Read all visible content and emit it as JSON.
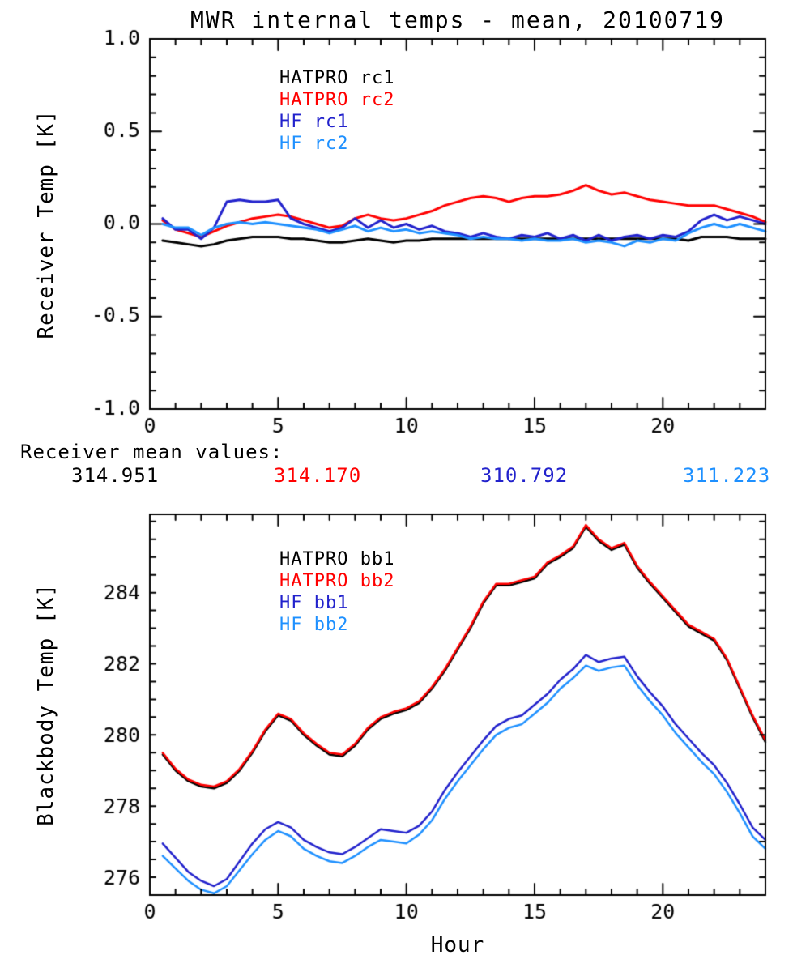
{
  "title": "MWR internal temps - mean, 20100719",
  "receiver_means": {
    "label": "Receiver mean values:",
    "values": [
      {
        "text": "314.951",
        "color": "#000000"
      },
      {
        "text": "314.170",
        "color": "#ff0000"
      },
      {
        "text": "310.792",
        "color": "#2222cc"
      },
      {
        "text": "311.223",
        "color": "#1e90ff"
      }
    ]
  },
  "chart_data": [
    {
      "type": "line",
      "name": "receiver-temp-plot",
      "ylabel": "Receiver Temp [K]",
      "xlabel": "",
      "xlim": [
        0,
        24
      ],
      "ylim": [
        -1.0,
        1.0
      ],
      "xticks": [
        0,
        5,
        10,
        15,
        20
      ],
      "xtick_labels": [
        "0",
        "5",
        "10",
        "15",
        "20"
      ],
      "yticks": [
        -1.0,
        -0.5,
        0.0,
        0.5,
        1.0
      ],
      "ytick_labels": [
        "-1.0",
        "-0.5",
        "0.0",
        "0.5",
        "1.0"
      ],
      "xminor": 1,
      "yminor": 0.1,
      "grid": false,
      "legend_position": "upper-left-inside",
      "x_start": 0.5,
      "x_step": 0.5,
      "series": [
        {
          "name": "HATPRO rc1",
          "color": "#000000",
          "values": [
            -0.09,
            -0.1,
            -0.11,
            -0.12,
            -0.11,
            -0.09,
            -0.08,
            -0.07,
            -0.07,
            -0.07,
            -0.08,
            -0.08,
            -0.09,
            -0.1,
            -0.1,
            -0.09,
            -0.08,
            -0.09,
            -0.1,
            -0.09,
            -0.09,
            -0.08,
            -0.08,
            -0.08,
            -0.08,
            -0.08,
            -0.08,
            -0.08,
            -0.08,
            -0.08,
            -0.08,
            -0.08,
            -0.08,
            -0.08,
            -0.08,
            -0.08,
            -0.08,
            -0.08,
            -0.08,
            -0.08,
            -0.08,
            -0.09,
            -0.07,
            -0.07,
            -0.07,
            -0.08,
            -0.08,
            -0.08
          ]
        },
        {
          "name": "HATPRO rc2",
          "color": "#ff0000",
          "values": [
            0.02,
            -0.03,
            -0.05,
            -0.07,
            -0.04,
            -0.01,
            0.01,
            0.03,
            0.04,
            0.05,
            0.04,
            0.02,
            0.0,
            -0.02,
            -0.01,
            0.03,
            0.05,
            0.03,
            0.02,
            0.03,
            0.05,
            0.07,
            0.1,
            0.12,
            0.14,
            0.15,
            0.14,
            0.12,
            0.14,
            0.15,
            0.15,
            0.16,
            0.18,
            0.21,
            0.18,
            0.16,
            0.17,
            0.15,
            0.13,
            0.12,
            0.11,
            0.1,
            0.1,
            0.1,
            0.08,
            0.06,
            0.04,
            0.01
          ]
        },
        {
          "name": "HF rc1",
          "color": "#2222cc",
          "values": [
            0.03,
            -0.03,
            -0.03,
            -0.08,
            -0.02,
            0.12,
            0.13,
            0.12,
            0.12,
            0.13,
            0.03,
            0.0,
            -0.02,
            -0.04,
            -0.02,
            0.03,
            -0.02,
            0.02,
            -0.02,
            0.0,
            -0.03,
            -0.01,
            -0.04,
            -0.05,
            -0.07,
            -0.05,
            -0.07,
            -0.08,
            -0.06,
            -0.07,
            -0.05,
            -0.08,
            -0.06,
            -0.09,
            -0.06,
            -0.09,
            -0.07,
            -0.06,
            -0.08,
            -0.06,
            -0.07,
            -0.04,
            0.02,
            0.05,
            0.02,
            0.04,
            0.02,
            0.0
          ]
        },
        {
          "name": "HF rc2",
          "color": "#1e90ff",
          "values": [
            0.0,
            -0.02,
            -0.02,
            -0.06,
            -0.02,
            0.0,
            0.01,
            0.0,
            0.01,
            0.0,
            -0.01,
            -0.02,
            -0.03,
            -0.05,
            -0.03,
            -0.01,
            -0.04,
            -0.02,
            -0.04,
            -0.03,
            -0.05,
            -0.04,
            -0.05,
            -0.06,
            -0.08,
            -0.07,
            -0.08,
            -0.08,
            -0.09,
            -0.08,
            -0.09,
            -0.09,
            -0.08,
            -0.1,
            -0.09,
            -0.1,
            -0.12,
            -0.09,
            -0.1,
            -0.08,
            -0.09,
            -0.05,
            -0.02,
            0.0,
            -0.02,
            0.0,
            -0.02,
            -0.04
          ]
        }
      ]
    },
    {
      "type": "line",
      "name": "blackbody-temp-plot",
      "ylabel": "Blackbody Temp [K]",
      "xlabel": "Hour",
      "xlim": [
        0,
        24
      ],
      "ylim": [
        275.55,
        286.25
      ],
      "xticks": [
        0,
        5,
        10,
        15,
        20
      ],
      "xtick_labels": [
        "0",
        "5",
        "10",
        "15",
        "20"
      ],
      "yticks": [
        276,
        278,
        280,
        282,
        284
      ],
      "ytick_labels": [
        "276",
        "278",
        "280",
        "282",
        "284"
      ],
      "xminor": 1,
      "yminor": 0.5,
      "grid": false,
      "legend_position": "upper-left-inside",
      "x_start": 0.5,
      "x_step": 0.5,
      "series": [
        {
          "name": "HATPRO bb1",
          "color": "#000000",
          "values": [
            279.5,
            279.05,
            278.75,
            278.6,
            278.55,
            278.7,
            279.05,
            279.55,
            280.15,
            280.6,
            280.45,
            280.05,
            279.75,
            279.5,
            279.45,
            279.75,
            280.2,
            280.5,
            280.65,
            280.75,
            280.95,
            281.35,
            281.85,
            282.45,
            283.05,
            283.75,
            284.25,
            284.25,
            284.35,
            284.45,
            284.85,
            285.05,
            285.3,
            285.9,
            285.5,
            285.25,
            285.4,
            284.75,
            284.3,
            283.9,
            283.5,
            283.1,
            282.9,
            282.7,
            282.15,
            281.35,
            280.55,
            279.85
          ]
        },
        {
          "name": "HATPRO bb2",
          "color": "#ff0000",
          "values": [
            279.55,
            279.1,
            278.8,
            278.65,
            278.6,
            278.75,
            279.1,
            279.6,
            280.2,
            280.65,
            280.5,
            280.1,
            279.8,
            279.55,
            279.5,
            279.8,
            280.25,
            280.55,
            280.7,
            280.8,
            281.0,
            281.4,
            281.9,
            282.5,
            283.1,
            283.8,
            284.3,
            284.3,
            284.4,
            284.5,
            284.9,
            285.1,
            285.35,
            285.95,
            285.55,
            285.3,
            285.45,
            284.8,
            284.35,
            283.95,
            283.55,
            283.15,
            282.95,
            282.75,
            282.2,
            281.4,
            280.6,
            279.9
          ]
        },
        {
          "name": "HF bb1",
          "color": "#2222cc",
          "values": [
            277.0,
            276.6,
            276.2,
            275.95,
            275.8,
            276.0,
            276.5,
            277.0,
            277.4,
            277.6,
            277.45,
            277.1,
            276.9,
            276.75,
            276.7,
            276.9,
            277.15,
            277.4,
            277.35,
            277.3,
            277.5,
            277.9,
            278.5,
            279.0,
            279.45,
            279.9,
            280.3,
            280.5,
            280.6,
            280.9,
            281.2,
            281.6,
            281.9,
            282.3,
            282.1,
            282.2,
            282.25,
            281.7,
            281.25,
            280.85,
            280.35,
            279.95,
            279.55,
            279.2,
            278.7,
            278.1,
            277.45,
            277.1
          ]
        },
        {
          "name": "HF bb2",
          "color": "#1e90ff",
          "values": [
            276.65,
            276.3,
            275.95,
            275.7,
            275.6,
            275.8,
            276.25,
            276.7,
            277.1,
            277.35,
            277.2,
            276.85,
            276.65,
            276.5,
            276.45,
            276.65,
            276.9,
            277.1,
            277.05,
            277.0,
            277.25,
            277.65,
            278.25,
            278.75,
            279.2,
            279.65,
            280.05,
            280.25,
            280.35,
            280.65,
            280.95,
            281.35,
            281.65,
            282.0,
            281.85,
            281.95,
            282.0,
            281.45,
            281.0,
            280.6,
            280.1,
            279.7,
            279.3,
            278.95,
            278.45,
            277.85,
            277.2,
            276.85
          ]
        }
      ]
    }
  ]
}
